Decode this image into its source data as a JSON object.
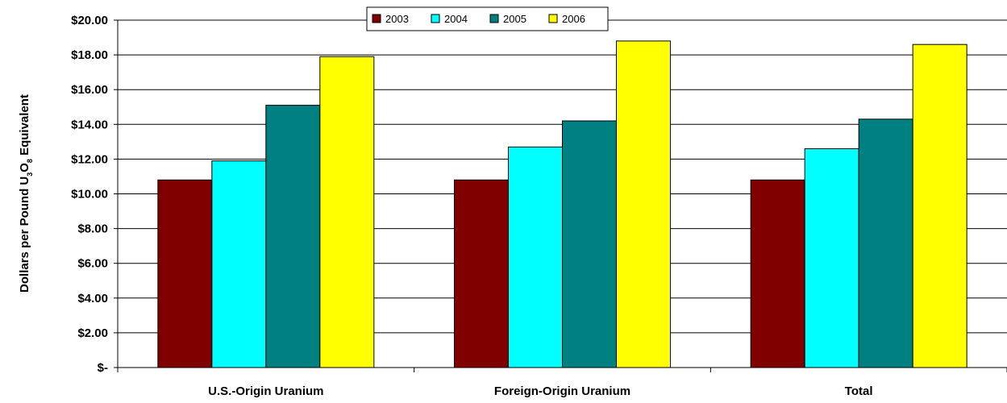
{
  "chart_data": {
    "type": "bar",
    "categories": [
      "U.S.-Origin Uranium",
      "Foreign-Origin Uranium",
      "Total"
    ],
    "series": [
      {
        "name": "2003",
        "color": "#800000",
        "values": [
          10.8,
          10.8,
          10.8
        ]
      },
      {
        "name": "2004",
        "color": "#00ffff",
        "values": [
          11.9,
          12.7,
          12.6
        ]
      },
      {
        "name": "2005",
        "color": "#008080",
        "values": [
          15.1,
          14.2,
          14.3
        ]
      },
      {
        "name": "2006",
        "color": "#ffff00",
        "values": [
          17.9,
          18.8,
          18.6
        ]
      }
    ],
    "ylabel": {
      "prefix": "Dollars per Pound U",
      "sub1": "3",
      "mid": "O",
      "sub2": "8",
      "suffix": " Equivalent"
    },
    "ylim": [
      0,
      20
    ],
    "yticks": [
      0,
      2,
      4,
      6,
      8,
      10,
      12,
      14,
      16,
      18,
      20
    ],
    "ytick_labels": [
      "$-",
      "$2.00",
      "$4.00",
      "$6.00",
      "$8.00",
      "$10.00",
      "$12.00",
      "$14.00",
      "$16.00",
      "$18.00",
      "$20.00"
    ],
    "grid": true,
    "legend_position": "top-center"
  }
}
